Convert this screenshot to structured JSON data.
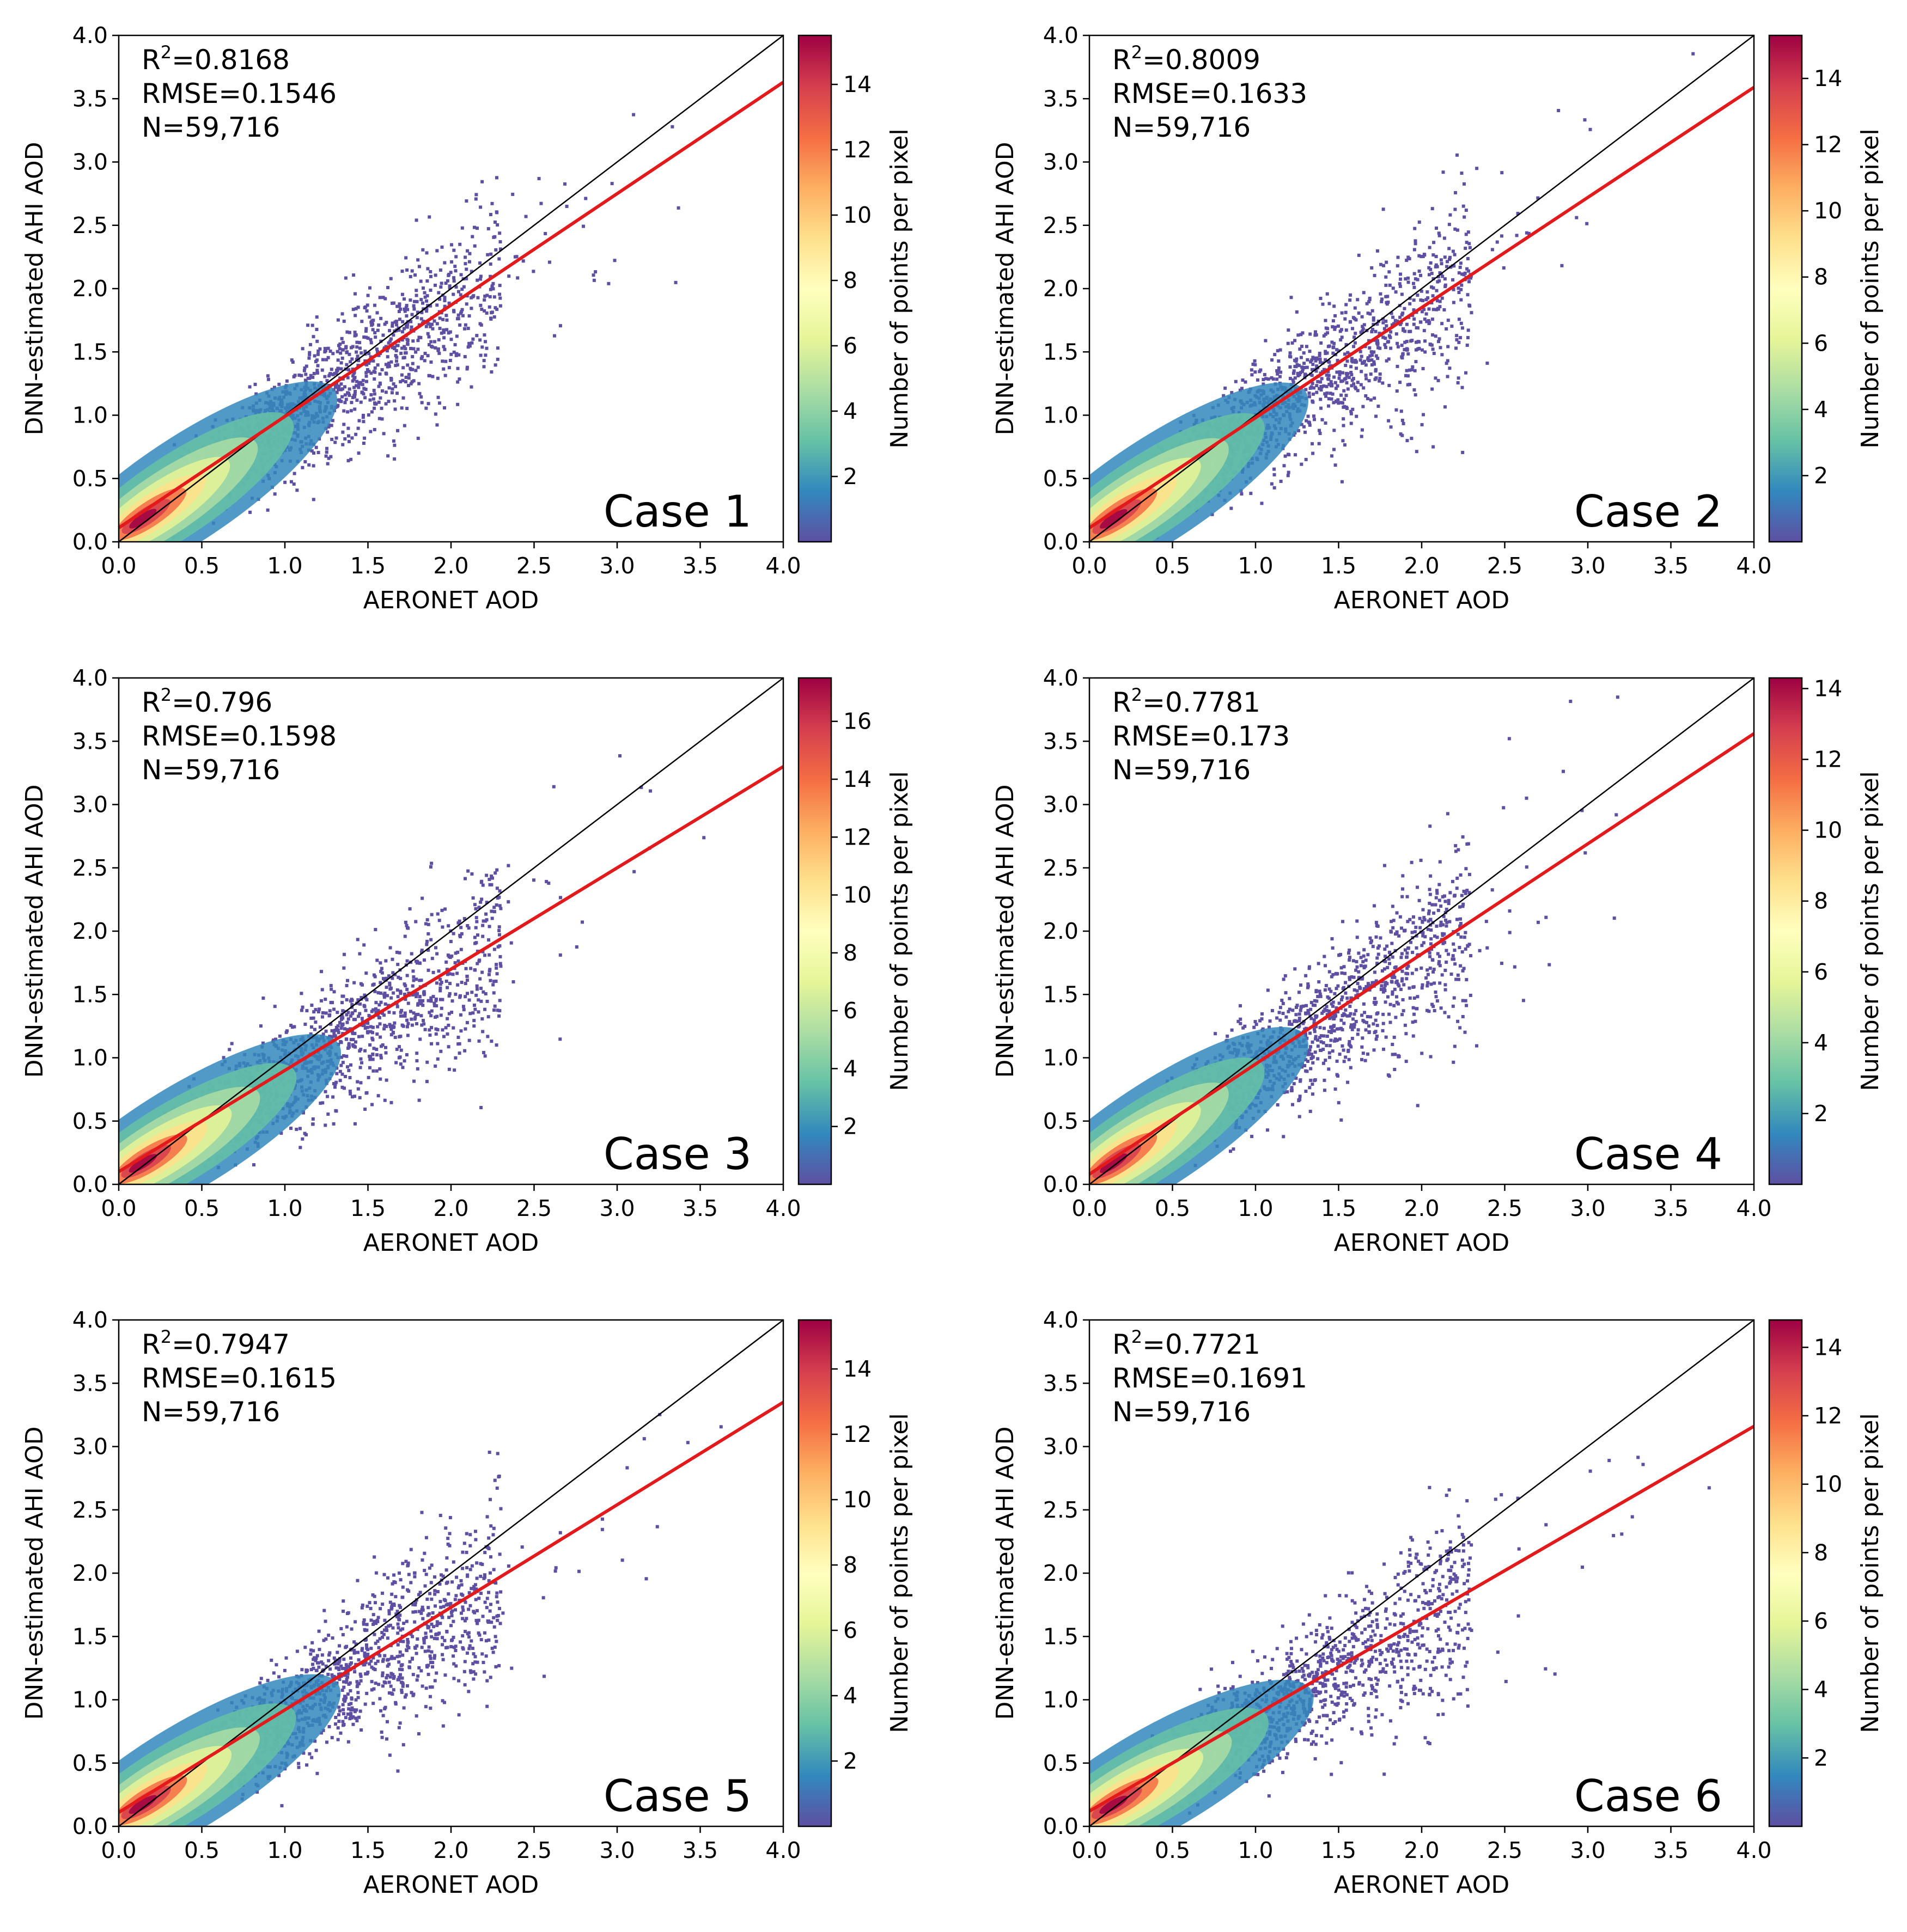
{
  "figure": {
    "xlabel": "AERONET AOD",
    "ylabel": "DNN-estimated AHI AOD",
    "colorbar_label": "Number of points per pixel",
    "x_ticks": [
      "0.0",
      "0.5",
      "1.0",
      "1.5",
      "2.0",
      "2.5",
      "3.0",
      "3.5",
      "4.0"
    ],
    "y_ticks": [
      "0.0",
      "0.5",
      "1.0",
      "1.5",
      "2.0",
      "2.5",
      "3.0",
      "3.5",
      "4.0"
    ],
    "colors": {
      "scatter": "#5e4fa2",
      "fit_line": "#e31a1c",
      "one_to_one": "#000000",
      "colormap": [
        "#5e4fa2",
        "#3288bd",
        "#66c2a5",
        "#abdda4",
        "#e6f598",
        "#ffffbf",
        "#fee08b",
        "#fdae61",
        "#f46d43",
        "#d53e4f",
        "#9e0142"
      ]
    }
  },
  "chart_data": [
    {
      "type": "scatter",
      "title": "Case 1",
      "stats": {
        "r2": "0.8168",
        "rmse": "0.1546",
        "n": "59,716"
      },
      "r2_text": "=0.8168",
      "rmse_text": "RMSE=0.1546",
      "n_text": "N=59,716",
      "fit": {
        "slope": 0.88,
        "intercept": 0.11
      },
      "xlim": [
        0,
        4
      ],
      "ylim": [
        0,
        4
      ],
      "colorbar": {
        "min": 0,
        "max": 15.5,
        "ticks": [
          "2",
          "4",
          "6",
          "8",
          "10",
          "12",
          "14"
        ]
      }
    },
    {
      "type": "scatter",
      "title": "Case 2",
      "stats": {
        "r2": "0.8009",
        "rmse": "0.1633",
        "n": "59,716"
      },
      "r2_text": "=0.8009",
      "rmse_text": "RMSE=0.1633",
      "n_text": "N=59,716",
      "fit": {
        "slope": 0.87,
        "intercept": 0.11
      },
      "xlim": [
        0,
        4
      ],
      "ylim": [
        0,
        4
      ],
      "colorbar": {
        "min": 0,
        "max": 15.3,
        "ticks": [
          "2",
          "4",
          "6",
          "8",
          "10",
          "12",
          "14"
        ]
      }
    },
    {
      "type": "scatter",
      "title": "Case 3",
      "stats": {
        "r2": "0.796",
        "rmse": "0.1598",
        "n": "59,716"
      },
      "r2_text": "=0.796",
      "rmse_text": "RMSE=0.1598",
      "n_text": "N=59,716",
      "fit": {
        "slope": 0.8,
        "intercept": 0.1
      },
      "xlim": [
        0,
        4
      ],
      "ylim": [
        0,
        4
      ],
      "colorbar": {
        "min": 0,
        "max": 17.5,
        "ticks": [
          "2",
          "4",
          "6",
          "8",
          "10",
          "12",
          "14",
          "16"
        ]
      }
    },
    {
      "type": "scatter",
      "title": "Case 4",
      "stats": {
        "r2": "0.7781",
        "rmse": "0.173",
        "n": "59,716"
      },
      "r2_text": "=0.7781",
      "rmse_text": "RMSE=0.173",
      "n_text": "N=59,716",
      "fit": {
        "slope": 0.87,
        "intercept": 0.08
      },
      "xlim": [
        0,
        4
      ],
      "ylim": [
        0,
        4
      ],
      "colorbar": {
        "min": 0,
        "max": 14.3,
        "ticks": [
          "2",
          "4",
          "6",
          "8",
          "10",
          "12",
          "14"
        ]
      }
    },
    {
      "type": "scatter",
      "title": "Case 5",
      "stats": {
        "r2": "0.7947",
        "rmse": "0.1615",
        "n": "59,716"
      },
      "r2_text": "=0.7947",
      "rmse_text": "RMSE=0.1615",
      "n_text": "N=59,716",
      "fit": {
        "slope": 0.81,
        "intercept": 0.11
      },
      "xlim": [
        0,
        4
      ],
      "ylim": [
        0,
        4
      ],
      "colorbar": {
        "min": 0,
        "max": 15.5,
        "ticks": [
          "2",
          "4",
          "6",
          "8",
          "10",
          "12",
          "14"
        ]
      }
    },
    {
      "type": "scatter",
      "title": "Case 6",
      "stats": {
        "r2": "0.7721",
        "rmse": "0.1691",
        "n": "59,716"
      },
      "r2_text": "=0.7721",
      "rmse_text": "RMSE=0.1691",
      "n_text": "N=59,716",
      "fit": {
        "slope": 0.76,
        "intercept": 0.12
      },
      "xlim": [
        0,
        4
      ],
      "ylim": [
        0,
        4
      ],
      "colorbar": {
        "min": 0,
        "max": 14.8,
        "ticks": [
          "2",
          "4",
          "6",
          "8",
          "10",
          "12",
          "14"
        ]
      }
    }
  ]
}
